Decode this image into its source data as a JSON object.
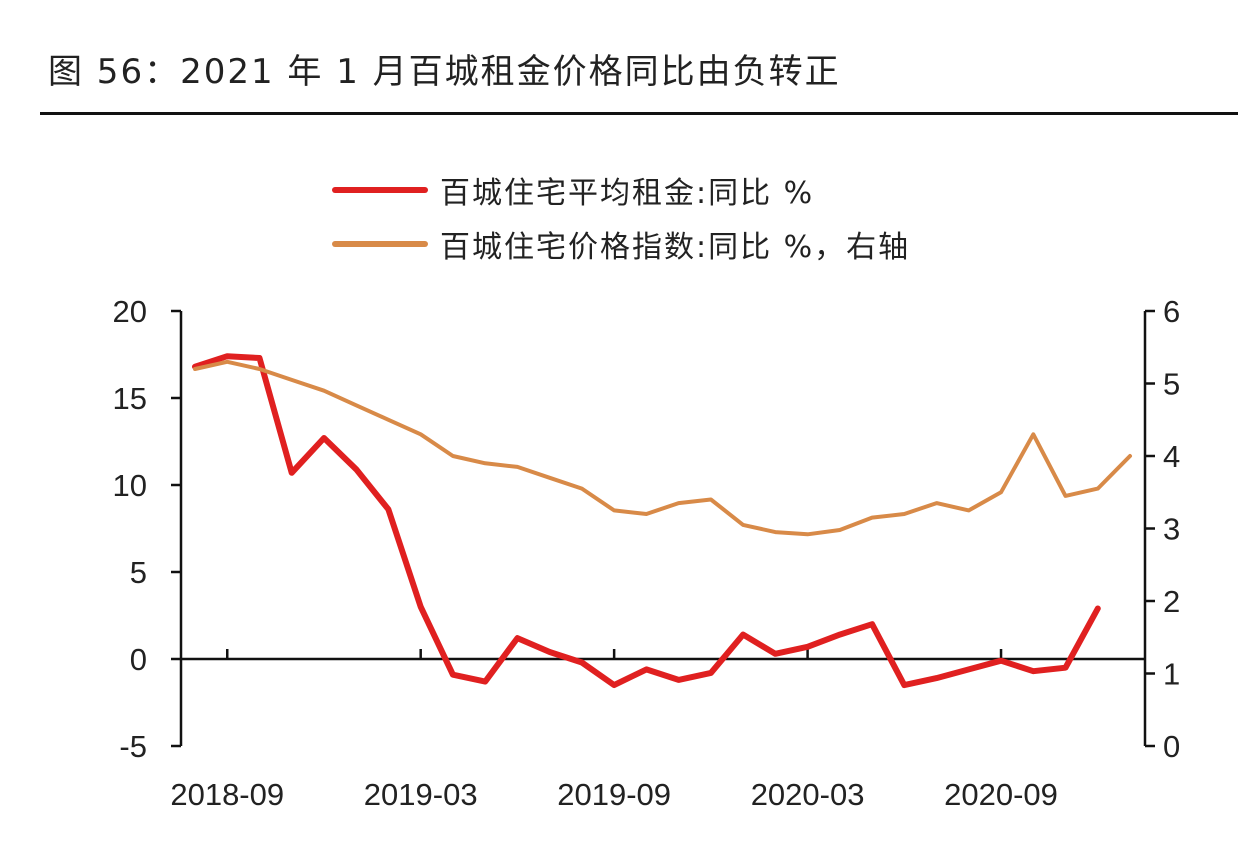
{
  "title": "图 56：2021 年 1 月百城租金价格同比由负转正",
  "colors": {
    "rent": "#e02020",
    "price": "#d88a48",
    "axis": "#111111"
  },
  "chart_data": {
    "type": "line",
    "title": "图 56：2021 年 1 月百城租金价格同比由负转正",
    "x": [
      "2018-08",
      "2018-09",
      "2018-10",
      "2018-11",
      "2018-12",
      "2019-01",
      "2019-02",
      "2019-03",
      "2019-04",
      "2019-05",
      "2019-06",
      "2019-07",
      "2019-08",
      "2019-09",
      "2019-10",
      "2019-11",
      "2019-12",
      "2020-01",
      "2020-02",
      "2020-03",
      "2020-04",
      "2020-05",
      "2020-06",
      "2020-07",
      "2020-08",
      "2020-09",
      "2020-10",
      "2020-11",
      "2020-12",
      "2021-01"
    ],
    "x_tick_labels": [
      "2018-09",
      "2019-03",
      "2019-09",
      "2020-03",
      "2020-09"
    ],
    "series": [
      {
        "name": "百城住宅平均租金:同比 %",
        "axis": "left",
        "color": "#e02020",
        "values": [
          16.8,
          17.4,
          17.3,
          10.7,
          12.7,
          10.9,
          8.6,
          3.0,
          -0.9,
          -1.3,
          1.2,
          0.4,
          -0.2,
          -1.5,
          -0.6,
          -1.2,
          -0.8,
          1.4,
          0.3,
          0.7,
          1.4,
          2.0,
          -1.5,
          -1.1,
          -0.6,
          -0.1,
          -0.7,
          -0.5,
          2.9,
          null
        ]
      },
      {
        "name": "百城住宅价格指数:同比 %，右轴",
        "axis": "right",
        "color": "#d88a48",
        "values": [
          5.2,
          5.3,
          5.2,
          5.05,
          4.9,
          4.7,
          4.5,
          4.3,
          4.0,
          3.9,
          3.85,
          3.7,
          3.55,
          3.25,
          3.2,
          3.35,
          3.4,
          3.05,
          2.95,
          2.92,
          2.98,
          3.15,
          3.2,
          3.35,
          3.25,
          3.5,
          4.3,
          3.45,
          3.55,
          4.0
        ]
      }
    ],
    "ylim_left": [
      -5,
      20
    ],
    "yticks_left": [
      "-5",
      "0",
      "5",
      "10",
      "15",
      "20"
    ],
    "ylim_right": [
      0,
      6
    ],
    "yticks_right": [
      "0",
      "1",
      "2",
      "3",
      "4",
      "5",
      "6"
    ],
    "grid": false,
    "legend_position": "top-center"
  }
}
